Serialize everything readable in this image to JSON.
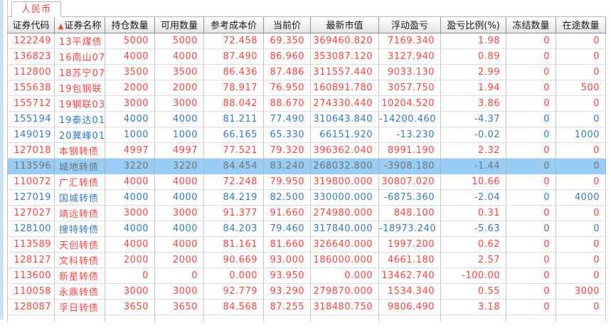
{
  "tab": {
    "label": "人民币"
  },
  "colors": {
    "up": "#f94545",
    "down": "#397abd",
    "selected_bg": "#9acdf3",
    "selected_text": "#6d757d",
    "left_edge": "#cde2f5"
  },
  "table": {
    "sort_icon": "▲",
    "columns": [
      {
        "key": "code",
        "label": "证券代码"
      },
      {
        "key": "name",
        "label": "证券名称",
        "sorted": true
      },
      {
        "key": "position",
        "label": "持仓数量"
      },
      {
        "key": "available",
        "label": "可用数量"
      },
      {
        "key": "cost",
        "label": "参考成本价"
      },
      {
        "key": "current",
        "label": "当前价"
      },
      {
        "key": "market_value",
        "label": "最新市值"
      },
      {
        "key": "pl",
        "label": "浮动盈亏"
      },
      {
        "key": "pl_pct",
        "label": "盈亏比例(%)"
      },
      {
        "key": "frozen",
        "label": "冻结数量"
      },
      {
        "key": "in_transit",
        "label": "在途数量"
      }
    ],
    "rows": [
      {
        "code": "122249",
        "name": "13平煤债",
        "position": "5000",
        "available": "5000",
        "cost": "72.458",
        "current": "69.350",
        "market_value": "369460.820",
        "pl": "7169.340",
        "pl_pct": "1.98",
        "frozen": "0",
        "in_transit": "0",
        "trend": "up",
        "selected": false
      },
      {
        "code": "136823",
        "name": "16南山07",
        "position": "4000",
        "available": "4000",
        "cost": "87.490",
        "current": "86.960",
        "market_value": "353087.120",
        "pl": "3127.940",
        "pl_pct": "0.89",
        "frozen": "0",
        "in_transit": "0",
        "trend": "up",
        "selected": false
      },
      {
        "code": "112800",
        "name": "18苏宁07",
        "position": "3500",
        "available": "3500",
        "cost": "86.436",
        "current": "87.486",
        "market_value": "311557.440",
        "pl": "9033.130",
        "pl_pct": "2.99",
        "frozen": "0",
        "in_transit": "0",
        "trend": "up",
        "selected": false
      },
      {
        "code": "155638",
        "name": "19包钢联",
        "position": "2000",
        "available": "2000",
        "cost": "78.917",
        "current": "76.950",
        "market_value": "160891.780",
        "pl": "3057.750",
        "pl_pct": "1.94",
        "frozen": "0",
        "in_transit": "500",
        "trend": "up",
        "selected": false
      },
      {
        "code": "155712",
        "name": "19钢联03",
        "position": "3000",
        "available": "3000",
        "cost": "88.042",
        "current": "88.670",
        "market_value": "274330.440",
        "pl": "10204.520",
        "pl_pct": "3.86",
        "frozen": "0",
        "in_transit": "0",
        "trend": "up",
        "selected": false
      },
      {
        "code": "155194",
        "name": "19泰达01",
        "position": "4000",
        "available": "4000",
        "cost": "81.211",
        "current": "77.490",
        "market_value": "310643.840",
        "pl": "-14200.460",
        "pl_pct": "-4.37",
        "frozen": "0",
        "in_transit": "0",
        "trend": "down",
        "selected": false
      },
      {
        "code": "149019",
        "name": "20冀峰01",
        "position": "1000",
        "available": "1000",
        "cost": "66.165",
        "current": "65.330",
        "market_value": "66151.920",
        "pl": "-13.230",
        "pl_pct": "-0.02",
        "frozen": "0",
        "in_transit": "1000",
        "trend": "down",
        "selected": false
      },
      {
        "code": "127018",
        "name": "本钢转债",
        "position": "4997",
        "available": "4997",
        "cost": "77.521",
        "current": "79.320",
        "market_value": "396362.040",
        "pl": "8991.190",
        "pl_pct": "2.32",
        "frozen": "0",
        "in_transit": "0",
        "trend": "up",
        "selected": false
      },
      {
        "code": "113596",
        "name": "城地转债",
        "position": "3220",
        "available": "3220",
        "cost": "84.454",
        "current": "83.240",
        "market_value": "268032.800",
        "pl": "-3908.180",
        "pl_pct": "-1.44",
        "frozen": "0",
        "in_transit": "0",
        "trend": "down",
        "selected": true
      },
      {
        "code": "110072",
        "name": "广汇转债",
        "position": "4000",
        "available": "4000",
        "cost": "72.248",
        "current": "79.950",
        "market_value": "319800.000",
        "pl": "30807.020",
        "pl_pct": "10.66",
        "frozen": "0",
        "in_transit": "0",
        "trend": "up",
        "selected": false
      },
      {
        "code": "127019",
        "name": "国城转债",
        "position": "4000",
        "available": "4000",
        "cost": "84.219",
        "current": "82.500",
        "market_value": "330000.000",
        "pl": "-6875.360",
        "pl_pct": "-2.04",
        "frozen": "0",
        "in_transit": "4000",
        "trend": "down",
        "selected": false
      },
      {
        "code": "127027",
        "name": "靖远转债",
        "position": "3000",
        "available": "3000",
        "cost": "91.377",
        "current": "91.660",
        "market_value": "274980.000",
        "pl": "848.100",
        "pl_pct": "0.31",
        "frozen": "0",
        "in_transit": "0",
        "trend": "up",
        "selected": false
      },
      {
        "code": "128100",
        "name": "搜特转债",
        "position": "4000",
        "available": "4000",
        "cost": "84.203",
        "current": "79.460",
        "market_value": "317840.000",
        "pl": "-18973.240",
        "pl_pct": "-5.63",
        "frozen": "0",
        "in_transit": "0",
        "trend": "down",
        "selected": false
      },
      {
        "code": "113589",
        "name": "天创转债",
        "position": "4000",
        "available": "4000",
        "cost": "81.161",
        "current": "81.660",
        "market_value": "326640.000",
        "pl": "1997.200",
        "pl_pct": "0.62",
        "frozen": "0",
        "in_transit": "0",
        "trend": "up",
        "selected": false
      },
      {
        "code": "128127",
        "name": "文科转债",
        "position": "2000",
        "available": "2000",
        "cost": "90.669",
        "current": "93.000",
        "market_value": "186000.000",
        "pl": "4661.180",
        "pl_pct": "2.57",
        "frozen": "0",
        "in_transit": "0",
        "trend": "up",
        "selected": false
      },
      {
        "code": "113600",
        "name": "新星转债",
        "position": "0",
        "available": "0",
        "cost": "0.000",
        "current": "93.950",
        "market_value": "0.000",
        "pl": "13462.740",
        "pl_pct": "-100.00",
        "frozen": "0",
        "in_transit": "0",
        "trend": "up",
        "selected": false
      },
      {
        "code": "110058",
        "name": "永鼎转债",
        "position": "3000",
        "available": "3000",
        "cost": "92.779",
        "current": "93.290",
        "market_value": "279870.000",
        "pl": "1534.340",
        "pl_pct": "0.55",
        "frozen": "0",
        "in_transit": "3000",
        "trend": "up",
        "selected": false
      },
      {
        "code": "128087",
        "name": "孚日转债",
        "position": "3650",
        "available": "3650",
        "cost": "84.568",
        "current": "87.255",
        "market_value": "318480.750",
        "pl": "9806.490",
        "pl_pct": "3.18",
        "frozen": "0",
        "in_transit": "0",
        "trend": "up",
        "selected": false
      }
    ]
  }
}
